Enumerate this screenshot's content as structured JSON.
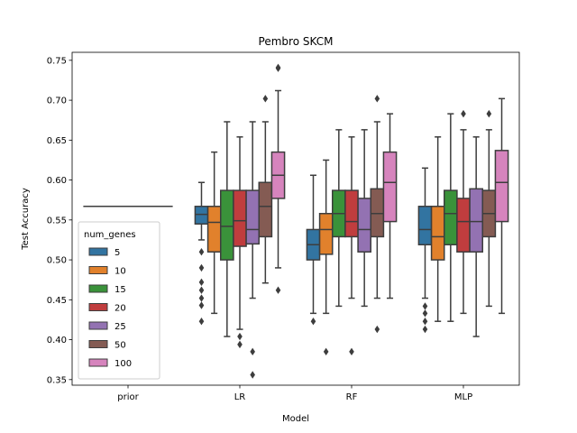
{
  "chart_data": {
    "type": "boxplot",
    "title": "Pembro SKCM",
    "xlabel": "Model",
    "ylabel": "Test Accuracy",
    "ylim": [
      0.343,
      0.76
    ],
    "yticks": [
      0.35,
      0.4,
      0.45,
      0.5,
      0.55,
      0.6,
      0.65,
      0.7,
      0.75
    ],
    "ytick_labels": [
      "0.35",
      "0.40",
      "0.45",
      "0.50",
      "0.55",
      "0.60",
      "0.65",
      "0.70",
      "0.75"
    ],
    "categories": [
      "prior",
      "LR",
      "RF",
      "MLP"
    ],
    "legend": {
      "title": "num_genes",
      "position": "lower-left",
      "entries": [
        "5",
        "10",
        "15",
        "20",
        "25",
        "50",
        "100"
      ]
    },
    "series_colors": [
      "#3274a1",
      "#e1812c",
      "#3a923a",
      "#c03d3e",
      "#9372b2",
      "#845b53",
      "#d684bd"
    ],
    "prior_value": 0.567,
    "boxes": {
      "LR": [
        {
          "q1": 0.545,
          "median": 0.557,
          "q3": 0.567,
          "whislo": 0.525,
          "whishi": 0.597,
          "fliers": [
            0.51,
            0.49,
            0.472,
            0.462,
            0.452,
            0.443,
            0.423
          ]
        },
        {
          "q1": 0.51,
          "median": 0.547,
          "q3": 0.567,
          "whislo": 0.433,
          "whishi": 0.635,
          "fliers": []
        },
        {
          "q1": 0.5,
          "median": 0.542,
          "q3": 0.587,
          "whislo": 0.404,
          "whishi": 0.673,
          "fliers": []
        },
        {
          "q1": 0.517,
          "median": 0.549,
          "q3": 0.587,
          "whislo": 0.413,
          "whishi": 0.654,
          "fliers": [
            0.404,
            0.394
          ]
        },
        {
          "q1": 0.52,
          "median": 0.538,
          "q3": 0.587,
          "whislo": 0.452,
          "whishi": 0.673,
          "fliers": [
            0.385,
            0.356
          ]
        },
        {
          "q1": 0.529,
          "median": 0.567,
          "q3": 0.597,
          "whislo": 0.471,
          "whishi": 0.673,
          "fliers": [
            0.702
          ]
        },
        {
          "q1": 0.577,
          "median": 0.606,
          "q3": 0.635,
          "whislo": 0.49,
          "whishi": 0.712,
          "fliers": [
            0.74,
            0.741,
            0.462
          ]
        }
      ],
      "RF": [
        {
          "q1": 0.5,
          "median": 0.519,
          "q3": 0.538,
          "whislo": 0.433,
          "whishi": 0.606,
          "fliers": [
            0.423
          ]
        },
        {
          "q1": 0.507,
          "median": 0.538,
          "q3": 0.558,
          "whislo": 0.433,
          "whishi": 0.625,
          "fliers": [
            0.385
          ]
        },
        {
          "q1": 0.529,
          "median": 0.558,
          "q3": 0.587,
          "whislo": 0.442,
          "whishi": 0.663,
          "fliers": []
        },
        {
          "q1": 0.529,
          "median": 0.548,
          "q3": 0.587,
          "whislo": 0.452,
          "whishi": 0.654,
          "fliers": [
            0.385
          ]
        },
        {
          "q1": 0.51,
          "median": 0.538,
          "q3": 0.577,
          "whislo": 0.442,
          "whishi": 0.663,
          "fliers": []
        },
        {
          "q1": 0.529,
          "median": 0.558,
          "q3": 0.589,
          "whislo": 0.452,
          "whishi": 0.673,
          "fliers": [
            0.702,
            0.413
          ]
        },
        {
          "q1": 0.548,
          "median": 0.597,
          "q3": 0.635,
          "whislo": 0.452,
          "whishi": 0.683,
          "fliers": []
        }
      ],
      "MLP": [
        {
          "q1": 0.519,
          "median": 0.538,
          "q3": 0.567,
          "whislo": 0.452,
          "whishi": 0.615,
          "fliers": [
            0.442,
            0.433,
            0.423,
            0.413
          ]
        },
        {
          "q1": 0.5,
          "median": 0.529,
          "q3": 0.567,
          "whislo": 0.423,
          "whishi": 0.654,
          "fliers": []
        },
        {
          "q1": 0.519,
          "median": 0.558,
          "q3": 0.587,
          "whislo": 0.423,
          "whishi": 0.683,
          "fliers": []
        },
        {
          "q1": 0.51,
          "median": 0.548,
          "q3": 0.577,
          "whislo": 0.433,
          "whishi": 0.663,
          "fliers": [
            0.683
          ]
        },
        {
          "q1": 0.51,
          "median": 0.548,
          "q3": 0.589,
          "whislo": 0.404,
          "whishi": 0.654,
          "fliers": []
        },
        {
          "q1": 0.529,
          "median": 0.558,
          "q3": 0.587,
          "whislo": 0.442,
          "whishi": 0.663,
          "fliers": [
            0.683
          ]
        },
        {
          "q1": 0.548,
          "median": 0.597,
          "q3": 0.637,
          "whislo": 0.433,
          "whishi": 0.702,
          "fliers": []
        }
      ]
    }
  }
}
